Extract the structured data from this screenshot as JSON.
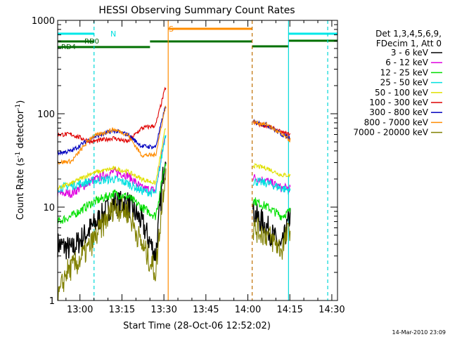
{
  "chart_data": {
    "type": "line",
    "title": "HESSI Observing Summary Count Rates",
    "xlabel": "Start Time (28-Oct-06 12:52:02)",
    "ylabel_main": "Count Rate (s",
    "ylabel_sup1": "-1",
    "ylabel_mid": " detector",
    "ylabel_sup2": "-1",
    "ylabel_end": ")",
    "footer": "14-Mar-2010 23:09",
    "yscale": "log",
    "ylim": [
      1,
      1000
    ],
    "xlim_minutes": [
      0,
      100
    ],
    "x_unit": "minutes since 12:52:02",
    "x_ticks": [
      {
        "label": "13:00",
        "minute": 7.97
      },
      {
        "label": "13:15",
        "minute": 22.97
      },
      {
        "label": "13:30",
        "minute": 37.97
      },
      {
        "label": "13:45",
        "minute": 52.97
      },
      {
        "label": "14:00",
        "minute": 67.97
      },
      {
        "label": "14:15",
        "minute": 82.97
      },
      {
        "label": "14:30",
        "minute": 97.97
      }
    ],
    "y_ticks": [
      {
        "label": "1",
        "value": 1
      },
      {
        "label": "10",
        "value": 10
      },
      {
        "label": "100",
        "value": 100
      },
      {
        "label": "1000",
        "value": 1000
      }
    ],
    "legend_header": [
      "Det 1,3,4,5,6,9,",
      "FDecim 1, Att 0"
    ],
    "data_gaps_minutes": [
      [
        39.5,
        69.5
      ],
      [
        83,
        100
      ]
    ],
    "series": [
      {
        "name": "3 - 6 keV",
        "color": "#000000",
        "levels": [
          [
            0,
            4
          ],
          [
            5,
            3.5
          ],
          [
            12,
            6
          ],
          [
            20,
            11
          ],
          [
            25,
            11
          ],
          [
            30,
            7
          ],
          [
            35,
            3
          ],
          [
            38.5,
            40
          ],
          [
            69.5,
            9
          ],
          [
            75,
            6
          ],
          [
            80,
            3.5
          ],
          [
            83,
            8
          ]
        ]
      },
      {
        "name": "6 - 12 keV",
        "color": "#e000e0",
        "levels": [
          [
            0,
            14
          ],
          [
            5,
            14
          ],
          [
            12,
            19
          ],
          [
            20,
            24
          ],
          [
            25,
            22
          ],
          [
            30,
            16
          ],
          [
            35,
            15
          ],
          [
            38.5,
            60
          ],
          [
            69.5,
            21
          ],
          [
            75,
            19
          ],
          [
            80,
            16
          ],
          [
            83,
            16
          ]
        ]
      },
      {
        "name": "12 - 25 keV",
        "color": "#00e000",
        "levels": [
          [
            0,
            7
          ],
          [
            5,
            8
          ],
          [
            12,
            11
          ],
          [
            20,
            14
          ],
          [
            25,
            13
          ],
          [
            30,
            10
          ],
          [
            35,
            8
          ],
          [
            38.5,
            30
          ],
          [
            69.5,
            12
          ],
          [
            75,
            10
          ],
          [
            80,
            8
          ],
          [
            83,
            9
          ]
        ]
      },
      {
        "name": "25 - 50 keV",
        "color": "#00e0e0",
        "levels": [
          [
            0,
            16
          ],
          [
            5,
            17
          ],
          [
            12,
            19
          ],
          [
            20,
            20
          ],
          [
            25,
            18
          ],
          [
            30,
            15
          ],
          [
            35,
            14
          ],
          [
            38.5,
            60
          ],
          [
            69.5,
            19
          ],
          [
            75,
            18
          ],
          [
            80,
            16
          ],
          [
            83,
            15
          ]
        ]
      },
      {
        "name": "50 - 100 keV",
        "color": "#e0e000",
        "levels": [
          [
            0,
            16
          ],
          [
            5,
            18
          ],
          [
            12,
            23
          ],
          [
            20,
            26
          ],
          [
            25,
            24
          ],
          [
            30,
            20
          ],
          [
            35,
            18
          ],
          [
            38.5,
            70
          ],
          [
            69.5,
            28
          ],
          [
            75,
            26
          ],
          [
            80,
            22
          ],
          [
            83,
            22
          ]
        ]
      },
      {
        "name": "100 - 300 keV",
        "color": "#e00000",
        "levels": [
          [
            0,
            60
          ],
          [
            5,
            60
          ],
          [
            12,
            50
          ],
          [
            20,
            55
          ],
          [
            25,
            50
          ],
          [
            30,
            70
          ],
          [
            35,
            75
          ],
          [
            38.5,
            190
          ],
          [
            69.5,
            80
          ],
          [
            75,
            74
          ],
          [
            80,
            63
          ],
          [
            83,
            60
          ]
        ]
      },
      {
        "name": "300 - 800 keV",
        "color": "#0000c0",
        "levels": [
          [
            0,
            38
          ],
          [
            5,
            40
          ],
          [
            12,
            55
          ],
          [
            20,
            66
          ],
          [
            25,
            60
          ],
          [
            30,
            45
          ],
          [
            35,
            44
          ],
          [
            38.5,
            120
          ],
          [
            69.5,
            82
          ],
          [
            75,
            76
          ],
          [
            80,
            60
          ],
          [
            83,
            55
          ]
        ]
      },
      {
        "name": "800 - 7000 keV",
        "color": "#ff8c00",
        "levels": [
          [
            0,
            30
          ],
          [
            5,
            31
          ],
          [
            12,
            56
          ],
          [
            20,
            68
          ],
          [
            25,
            60
          ],
          [
            30,
            36
          ],
          [
            35,
            36
          ],
          [
            38.5,
            120
          ],
          [
            69.5,
            82
          ],
          [
            75,
            76
          ],
          [
            80,
            60
          ],
          [
            83,
            52
          ]
        ]
      },
      {
        "name": "7000 - 20000 keV",
        "color": "#808000",
        "levels": [
          [
            0,
            1
          ],
          [
            3,
            2
          ],
          [
            7,
            2.5
          ],
          [
            12,
            4
          ],
          [
            20,
            10
          ],
          [
            25,
            9
          ],
          [
            30,
            4
          ],
          [
            35,
            2
          ],
          [
            38.5,
            25
          ],
          [
            69.5,
            6
          ],
          [
            75,
            5
          ],
          [
            80,
            3.5
          ],
          [
            83,
            6
          ]
        ]
      }
    ],
    "annotations": {
      "saa_label": "S",
      "night_label": "N",
      "rd0_label": "RD0",
      "rd4_label": "RD4"
    }
  }
}
